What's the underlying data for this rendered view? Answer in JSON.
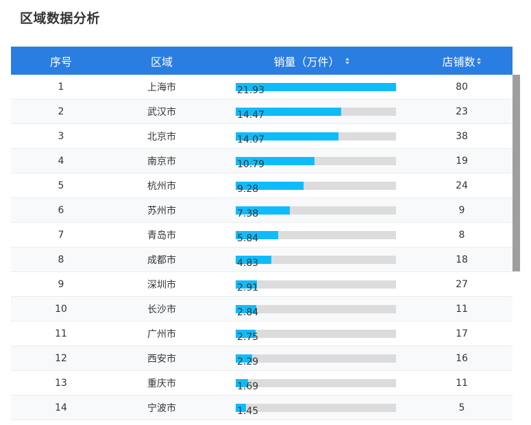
{
  "page": {
    "title": "区域数据分析"
  },
  "table": {
    "columns": [
      {
        "label": "序号",
        "sortable": false
      },
      {
        "label": "区域",
        "sortable": false
      },
      {
        "label": "销量（万件）",
        "sortable": true
      },
      {
        "label": "店铺数",
        "sortable": true
      }
    ],
    "max_sales": 21.93,
    "rows": [
      {
        "index": "1",
        "region": "上海市",
        "sales": "21.93",
        "stores": "80"
      },
      {
        "index": "2",
        "region": "武汉市",
        "sales": "14.47",
        "stores": "23"
      },
      {
        "index": "3",
        "region": "北京市",
        "sales": "14.07",
        "stores": "38"
      },
      {
        "index": "4",
        "region": "南京市",
        "sales": "10.79",
        "stores": "19"
      },
      {
        "index": "5",
        "region": "杭州市",
        "sales": "9.28",
        "stores": "24"
      },
      {
        "index": "6",
        "region": "苏州市",
        "sales": "7.38",
        "stores": "9"
      },
      {
        "index": "7",
        "region": "青岛市",
        "sales": "5.84",
        "stores": "8"
      },
      {
        "index": "8",
        "region": "成都市",
        "sales": "4.83",
        "stores": "18"
      },
      {
        "index": "9",
        "region": "深圳市",
        "sales": "2.91",
        "stores": "27"
      },
      {
        "index": "10",
        "region": "长沙市",
        "sales": "2.84",
        "stores": "11"
      },
      {
        "index": "11",
        "region": "广州市",
        "sales": "2.75",
        "stores": "17"
      },
      {
        "index": "12",
        "region": "西安市",
        "sales": "2.29",
        "stores": "16"
      },
      {
        "index": "13",
        "region": "重庆市",
        "sales": "1.69",
        "stores": "11"
      },
      {
        "index": "14",
        "region": "宁波市",
        "sales": "1.45",
        "stores": "5"
      }
    ]
  },
  "colors": {
    "header_bg": "#2a7de1",
    "bar_fill": "#0fbcf9",
    "bar_track": "#dcdcdc"
  }
}
